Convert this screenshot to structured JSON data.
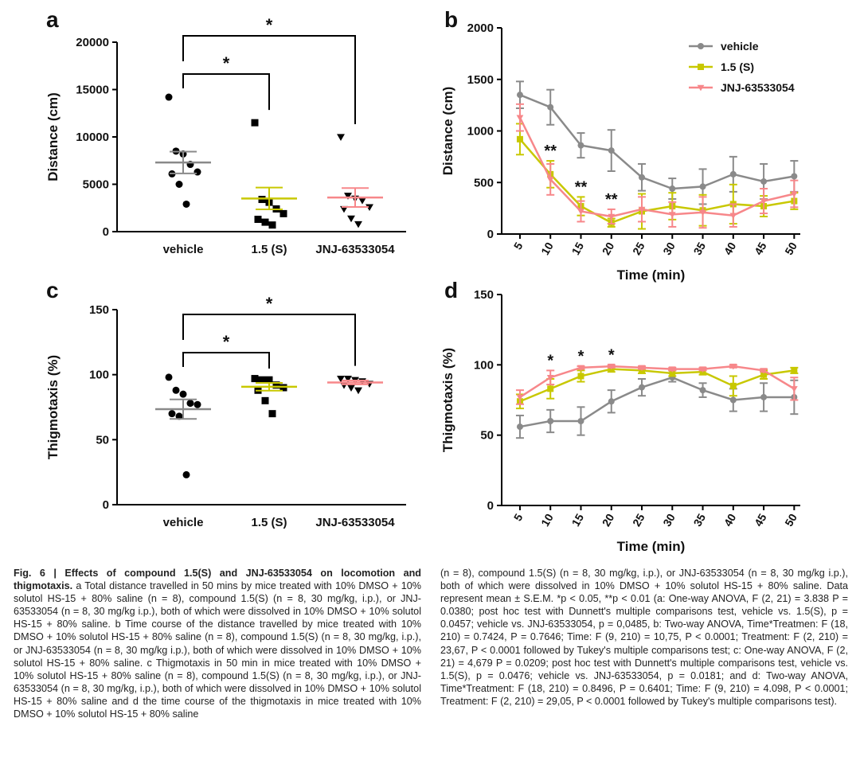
{
  "chart_data": [
    {
      "type": "dotplot",
      "panel": "a",
      "ylabel": "Distance (cm)",
      "ylim": [
        0,
        20000
      ],
      "yticks": [
        0,
        5000,
        10000,
        15000,
        20000
      ],
      "point_color": "#000000",
      "series": [
        {
          "name": "vehicle",
          "color": "#8a8a8a",
          "marker": "circle",
          "values": [
            14200,
            8500,
            8200,
            7100,
            6300,
            6100,
            5000,
            2900
          ],
          "mean": 7300,
          "sem": 1150
        },
        {
          "name": "1.5 (S)",
          "color": "#c8c800",
          "marker": "square",
          "values": [
            11500,
            3400,
            3100,
            2400,
            1900,
            1300,
            1000,
            700
          ],
          "mean": 3500,
          "sem": 1150
        },
        {
          "name": "JNJ-63533054",
          "color": "#f7878a",
          "marker": "triangle-down",
          "values": [
            10000,
            3800,
            3500,
            3300,
            2600,
            2400,
            1400,
            800
          ],
          "mean": 3600,
          "sem": 1000
        }
      ],
      "annotations": [
        {
          "from": 0,
          "to": 1,
          "label": "*"
        },
        {
          "from": 0,
          "to": 2,
          "label": "*"
        }
      ]
    },
    {
      "type": "line",
      "panel": "b",
      "xlabel": "Time (min)",
      "ylabel": "Distance (cm)",
      "xlim": [
        2,
        51
      ],
      "xticks": [
        5,
        10,
        15,
        20,
        25,
        30,
        35,
        40,
        45,
        50
      ],
      "ylim": [
        0,
        2000
      ],
      "yticks": [
        0,
        500,
        1000,
        1500,
        2000
      ],
      "legend": "upper right",
      "x": [
        5,
        10,
        15,
        20,
        25,
        30,
        35,
        40,
        45,
        50
      ],
      "series": [
        {
          "name": "vehicle",
          "color": "#8a8a8a",
          "marker": "circle",
          "values": [
            1350,
            1230,
            860,
            810,
            550,
            440,
            460,
            580,
            510,
            560
          ],
          "errors": [
            130,
            170,
            120,
            200,
            130,
            100,
            170,
            170,
            170,
            150
          ]
        },
        {
          "name": "1.5 (S)",
          "color": "#c8c800",
          "marker": "square",
          "values": [
            920,
            580,
            270,
            110,
            220,
            270,
            230,
            290,
            270,
            320
          ],
          "errors": [
            150,
            130,
            90,
            40,
            170,
            130,
            150,
            190,
            100,
            80
          ]
        },
        {
          "name": "JNJ-63533054",
          "color": "#f7878a",
          "marker": "triangle-down",
          "values": [
            1130,
            530,
            220,
            170,
            240,
            190,
            210,
            180,
            320,
            390
          ],
          "errors": [
            130,
            150,
            100,
            70,
            120,
            120,
            150,
            110,
            120,
            130
          ]
        }
      ],
      "annotations": [
        {
          "x": 10,
          "label": "**"
        },
        {
          "x": 15,
          "label": "**"
        },
        {
          "x": 20,
          "label": "**"
        }
      ]
    },
    {
      "type": "dotplot",
      "panel": "c",
      "ylabel": "Thigmotaxis (%)",
      "ylim": [
        0,
        150
      ],
      "yticks": [
        0,
        50,
        100,
        150
      ],
      "point_color": "#000000",
      "series": [
        {
          "name": "vehicle",
          "color": "#8a8a8a",
          "marker": "circle",
          "values": [
            98,
            88,
            85,
            78,
            77,
            70,
            68,
            23
          ],
          "mean": 73.5,
          "sem": 7.5
        },
        {
          "name": "1.5 (S)",
          "color": "#c8c800",
          "marker": "square",
          "values": [
            97,
            96,
            96,
            92,
            90,
            88,
            80,
            70
          ],
          "mean": 90.7,
          "sem": 3
        },
        {
          "name": "JNJ-63533054",
          "color": "#f7878a",
          "marker": "triangle-down",
          "values": [
            97,
            97,
            96,
            95,
            93,
            92,
            90,
            88
          ],
          "mean": 94,
          "sem": 1.5
        }
      ],
      "annotations": [
        {
          "from": 0,
          "to": 1,
          "label": "*"
        },
        {
          "from": 0,
          "to": 2,
          "label": "*"
        }
      ]
    },
    {
      "type": "line",
      "panel": "d",
      "xlabel": "Time (min)",
      "ylabel": "Thigmotaxis (%)",
      "xlim": [
        2,
        51
      ],
      "xticks": [
        5,
        10,
        15,
        20,
        25,
        30,
        35,
        40,
        45,
        50
      ],
      "ylim": [
        0,
        150
      ],
      "yticks": [
        0,
        50,
        100,
        150
      ],
      "x": [
        5,
        10,
        15,
        20,
        25,
        30,
        35,
        40,
        45,
        50
      ],
      "series": [
        {
          "name": "vehicle",
          "color": "#8a8a8a",
          "marker": "circle",
          "values": [
            56,
            60,
            60,
            74,
            84,
            91,
            82,
            75,
            77,
            77
          ],
          "errors": [
            8,
            8,
            10,
            8,
            6,
            3,
            5,
            8,
            10,
            12
          ]
        },
        {
          "name": "1.5 (S)",
          "color": "#c8c800",
          "marker": "square",
          "values": [
            74,
            83,
            92,
            97,
            96,
            94,
            95,
            85,
            93,
            96
          ],
          "errors": [
            5,
            7,
            4,
            2,
            2,
            2,
            2,
            7,
            3,
            2
          ]
        },
        {
          "name": "JNJ-63533054",
          "color": "#f7878a",
          "marker": "triangle-down",
          "values": [
            77,
            91,
            98,
            99,
            98,
            97,
            97,
            99,
            96,
            83
          ],
          "errors": [
            5,
            5,
            1,
            1,
            1,
            1,
            1,
            1,
            1,
            8
          ]
        }
      ],
      "annotations": [
        {
          "x": 10,
          "label": "*"
        },
        {
          "x": 15,
          "label": "*"
        },
        {
          "x": 20,
          "label": "*"
        }
      ]
    }
  ],
  "caption": {
    "title": "Fig. 6 | Effects of compound 1.5(S) and JNJ-63533054 on locomotion and thigmotaxis.",
    "left": "a Total distance travelled in 50 mins by mice treated with 10% DMSO + 10% solutol HS-15 + 80% saline (n = 8), compound 1.5(S) (n = 8, 30 mg/kg, i.p.), or JNJ-63533054 (n = 8, 30 mg/kg i.p.), both of which were dissolved in 10% DMSO + 10% solutol HS-15 + 80% saline. b Time course of the distance travelled by mice treated with 10% DMSO + 10% solutol HS-15 + 80% saline (n = 8), compound 1.5(S) (n = 8, 30 mg/kg, i.p.), or JNJ-63533054 (n = 8, 30 mg/kg i.p.), both of which were dissolved in 10% DMSO + 10% solutol HS-15 + 80% saline. c Thigmotaxis in 50 min in mice treated with 10% DMSO + 10% solutol HS-15 + 80% saline (n = 8), compound 1.5(S) (n = 8, 30 mg/kg, i.p.), or JNJ-63533054 (n = 8, 30 mg/kg, i.p.), both of which were dissolved in 10% DMSO + 10% solutol HS-15 + 80% saline and d the time course of the thigmotaxis in mice treated with 10% DMSO + 10% solutol HS-15 + 80% saline",
    "right": "(n = 8), compound 1.5(S) (n = 8, 30 mg/kg, i.p.), or JNJ-63533054 (n = 8, 30 mg/kg i.p.), both of which were dissolved in 10% DMSO + 10% solutol HS-15 + 80% saline. Data represent mean ± S.E.M. *p < 0.05, **p < 0.01 (a: One-way ANOVA, F (2, 21) = 3.838 P = 0.0380; post hoc test with Dunnett's multiple comparisons test, vehicle vs. 1.5(S), p = 0.0457; vehicle vs. JNJ-63533054, p = 0,0485, b: Two-way ANOVA, Time*Treatmen: F (18, 210) = 0.7424, P = 0.7646; Time: F (9, 210) = 10,75, P < 0.0001; Treatment: F (2, 210) = 23,67, P < 0.0001 followed by Tukey's multiple comparisons test; c: One-way ANOVA, F (2, 21) = 4,679 P = 0.0209; post hoc test with Dunnett's multiple comparisons test, vehicle vs. 1.5(S), p = 0.0476; vehicle vs. JNJ-63533054, p = 0.0181; and d: Two-way ANOVA, Time*Treatment: F (18, 210) = 0.8496, P = 0.6401; Time: F (9, 210) = 4.098, P < 0.0001; Treatment: F (2, 210) = 29,05, P < 0.0001 followed by Tukey's multiple comparisons test)."
  }
}
